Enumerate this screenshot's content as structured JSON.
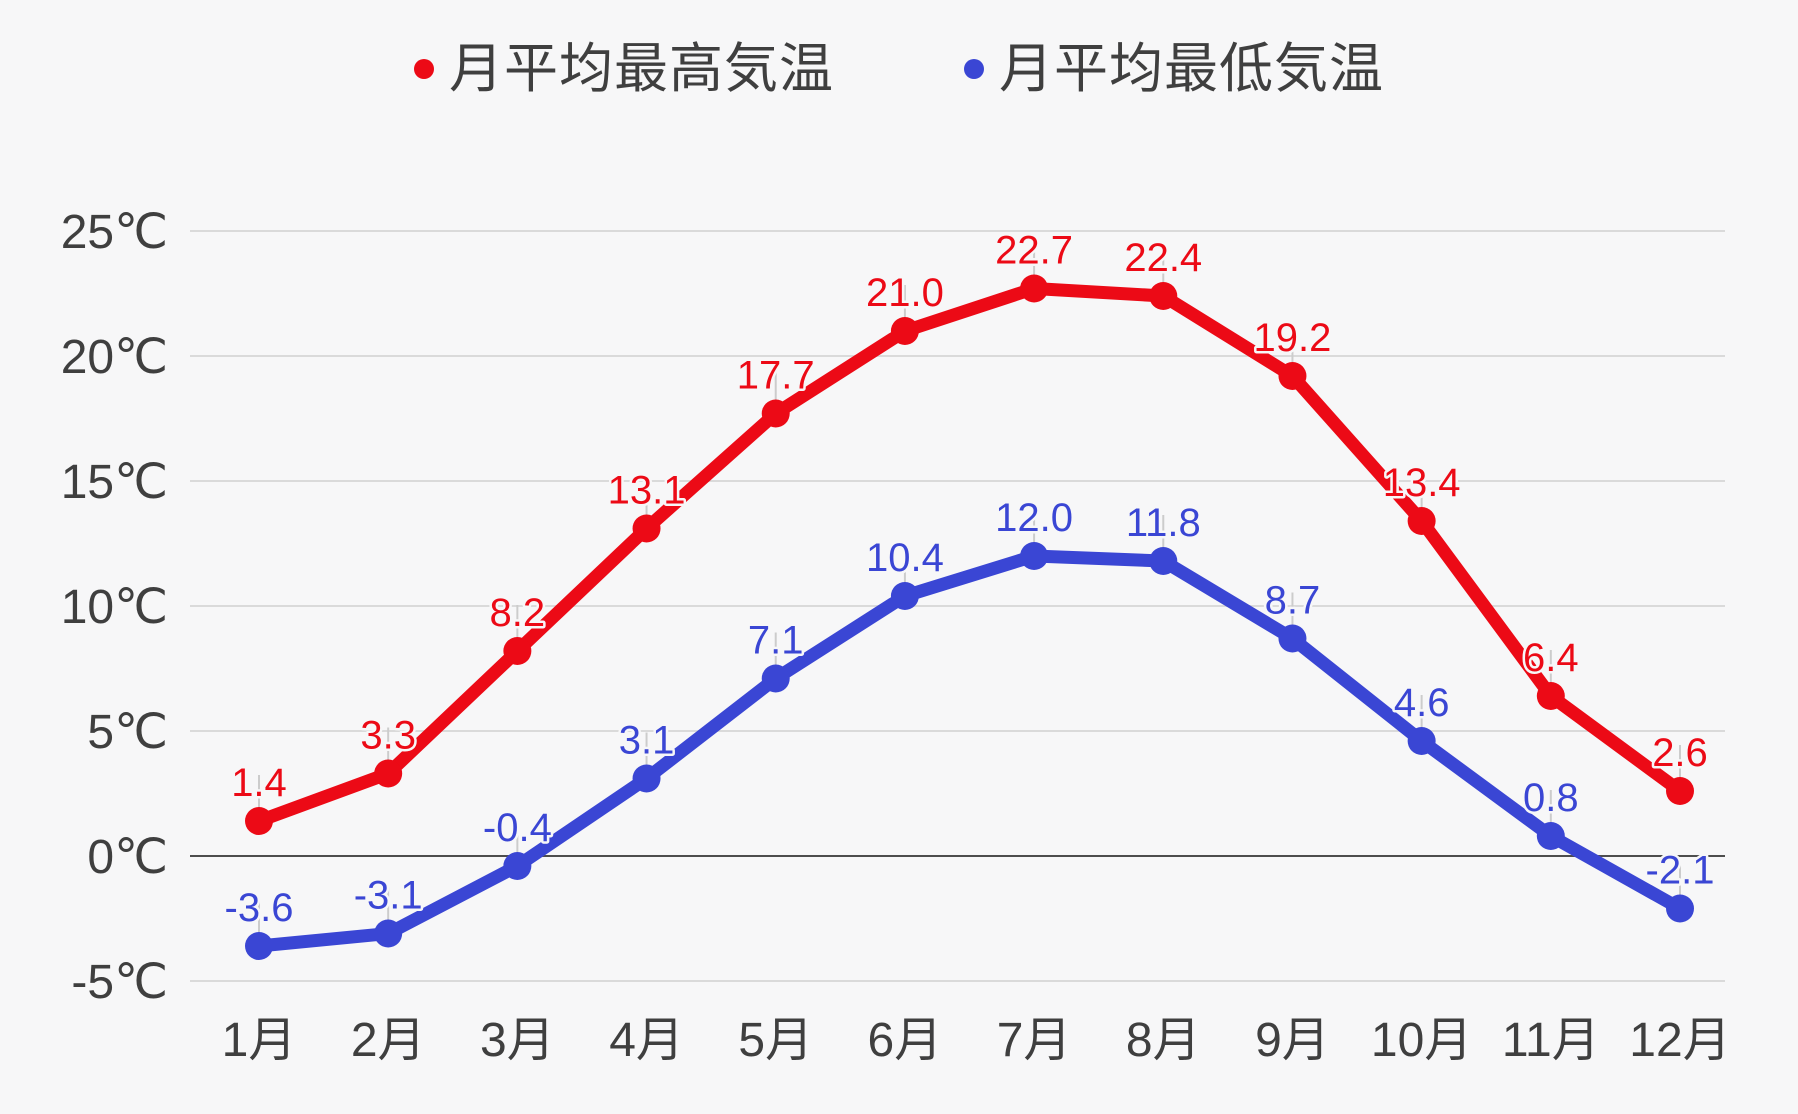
{
  "colors": {
    "background": "#f7f7f8",
    "axis_text": "#3f3f3f",
    "gridline": "#dadada",
    "zero_line": "#4d4d4d",
    "label_connector": "#cccccc",
    "series_max": "#ec0a16",
    "series_min": "#3a46d4"
  },
  "chart_data": {
    "type": "line",
    "title": "",
    "xlabel": "",
    "ylabel": "",
    "grid": true,
    "legend_position": "top",
    "point_labels": true,
    "categories": [
      "1月",
      "2月",
      "3月",
      "4月",
      "5月",
      "6月",
      "7月",
      "8月",
      "9月",
      "10月",
      "11月",
      "12月"
    ],
    "series": [
      {
        "id": "max-temp",
        "name": "月平均最高気温",
        "color": "#ec0a16",
        "values": [
          1.4,
          3.3,
          8.2,
          13.1,
          17.7,
          21.0,
          22.7,
          22.4,
          19.2,
          13.4,
          6.4,
          2.6
        ]
      },
      {
        "id": "min-temp",
        "name": "月平均最低気温",
        "color": "#3a46d4",
        "values": [
          -3.6,
          -3.1,
          -0.4,
          3.1,
          7.1,
          10.4,
          12.0,
          11.8,
          8.7,
          4.6,
          0.8,
          -2.1
        ]
      }
    ],
    "y_axis": {
      "unit": "℃",
      "min": -5,
      "max": 25,
      "ticks": [
        {
          "label": "25℃",
          "value": 25
        },
        {
          "label": "20℃",
          "value": 20
        },
        {
          "label": "15℃",
          "value": 15
        },
        {
          "label": "10℃",
          "value": 10
        },
        {
          "label": "5℃",
          "value": 5
        },
        {
          "label": "0℃",
          "value": 0
        },
        {
          "label": "-5℃",
          "value": -5
        }
      ]
    }
  }
}
